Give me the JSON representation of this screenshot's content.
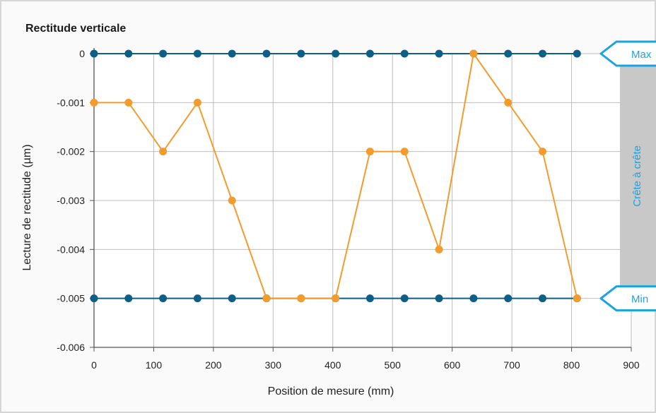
{
  "chart_data": {
    "type": "line",
    "title": "Rectitude verticale",
    "xlabel": "Position de mesure (mm)",
    "ylabel": "Lecture de rectitude (µm)",
    "xlim": [
      0,
      900
    ],
    "ylim": [
      -0.006,
      0
    ],
    "xticks": [
      0,
      100,
      200,
      300,
      400,
      500,
      600,
      700,
      800,
      900
    ],
    "yticks": [
      0,
      -0.001,
      -0.002,
      -0.003,
      -0.004,
      -0.005,
      -0.006
    ],
    "ytick_labels": [
      "0",
      "-0.001",
      "-0.002",
      "-0.003",
      "-0.004",
      "-0.005",
      "-0.006"
    ],
    "grid": true,
    "x": [
      0,
      57.8,
      115.6,
      173.4,
      231.2,
      289,
      346.8,
      404.6,
      462.4,
      520.2,
      578,
      635.8,
      693.6,
      751.4,
      809.2
    ],
    "series": [
      {
        "color": "#f39c2b",
        "values": [
          -0.001,
          -0.001,
          -0.002,
          -0.001,
          -0.003,
          -0.005,
          -0.005,
          -0.005,
          -0.002,
          -0.002,
          -0.004,
          0,
          -0.001,
          -0.002,
          -0.005
        ]
      },
      {
        "color": "#0d5f86",
        "values": [
          0,
          0,
          0,
          0,
          0,
          0,
          0,
          0,
          0,
          0,
          0,
          0,
          0,
          0,
          0
        ]
      },
      {
        "color": "#0d5f86",
        "values": [
          -0.005,
          -0.005,
          -0.005,
          -0.005,
          -0.005,
          -0.005,
          -0.005,
          -0.005,
          -0.005,
          -0.005,
          -0.005,
          -0.005,
          -0.005,
          -0.005,
          -0.005
        ]
      }
    ],
    "annotations": {
      "max_label": "Max",
      "min_label": "Min",
      "peak_to_peak_label": "Crête à crête",
      "band_color": "#c8c8c8",
      "tag_color": "#1aa3e0"
    }
  }
}
